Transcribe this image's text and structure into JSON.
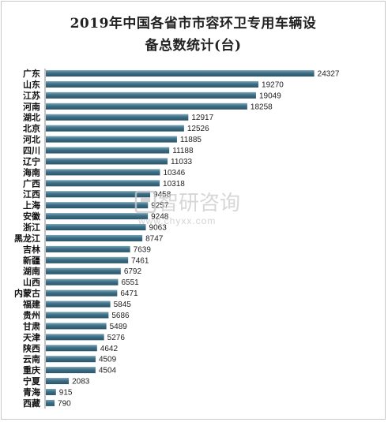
{
  "chart_data": {
    "type": "bar",
    "orientation": "horizontal",
    "title": "2019年中国各省市市容环卫专用车辆设备总数统计(台)",
    "title_lines": [
      "2019年中国各省市市容环卫专用车辆设",
      "备总数统计(台)"
    ],
    "categories": [
      "广东",
      "山东",
      "江苏",
      "河南",
      "湖北",
      "北京",
      "河北",
      "四川",
      "辽宁",
      "海南",
      "广西",
      "江西",
      "上海",
      "安徽",
      "浙江",
      "黑龙江",
      "吉林",
      "新疆",
      "湖南",
      "山西",
      "内蒙古",
      "福建",
      "贵州",
      "甘肃",
      "天津",
      "陕西",
      "云南",
      "重庆",
      "宁夏",
      "青海",
      "西藏"
    ],
    "values": [
      24327,
      19270,
      19049,
      18258,
      12917,
      12526,
      11885,
      11188,
      11033,
      10346,
      10318,
      9458,
      9257,
      9248,
      9063,
      8747,
      7639,
      7461,
      6792,
      6551,
      6471,
      5845,
      5686,
      5489,
      5276,
      4642,
      4509,
      4504,
      2083,
      915,
      790
    ],
    "xlim": [
      0,
      26000
    ],
    "grid": false,
    "legend": "none",
    "bar_color": "#3d6f86"
  },
  "watermark": {
    "brand": "智研咨询",
    "url": "www.chyxx.com"
  }
}
